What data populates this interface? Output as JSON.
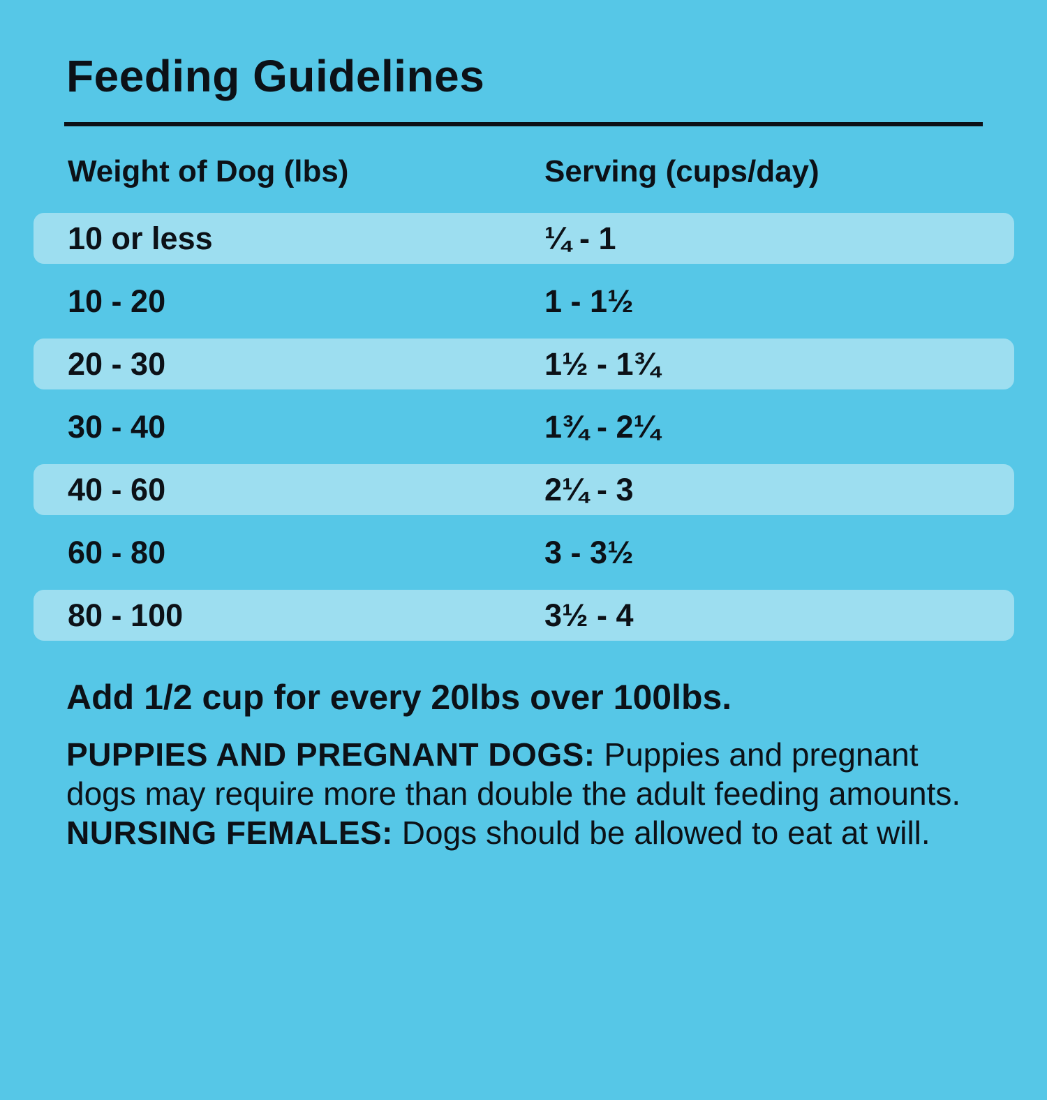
{
  "colors": {
    "background": "#56C7E7",
    "row_highlight": "#9DDEF0",
    "text": "#0C1117"
  },
  "title": "Feeding Guidelines",
  "table": {
    "headers": {
      "weight": "Weight of Dog (lbs)",
      "serving": "Serving (cups/day)"
    },
    "rows": [
      {
        "weight": "10 or less",
        "serving": "¼ - 1"
      },
      {
        "weight": "10 - 20",
        "serving": "1 - 1½"
      },
      {
        "weight": "20 - 30",
        "serving": "1½ - 1¾"
      },
      {
        "weight": "30 - 40",
        "serving": "1¾ - 2¼"
      },
      {
        "weight": "40 - 60",
        "serving": "2¼ - 3"
      },
      {
        "weight": "60 - 80",
        "serving": "3 - 3½"
      },
      {
        "weight": "80 - 100",
        "serving": "3½ - 4"
      }
    ]
  },
  "notes": {
    "addendum": "Add 1/2 cup for every 20lbs over 100lbs.",
    "puppies_label": "PUPPIES AND PREGNANT DOGS:",
    "puppies_text": " Puppies and pregnant dogs may require more than double the adult feeding amounts. ",
    "nursing_label": "NURSING FEMALES:",
    "nursing_text": " Dogs should be allowed to eat at will."
  }
}
